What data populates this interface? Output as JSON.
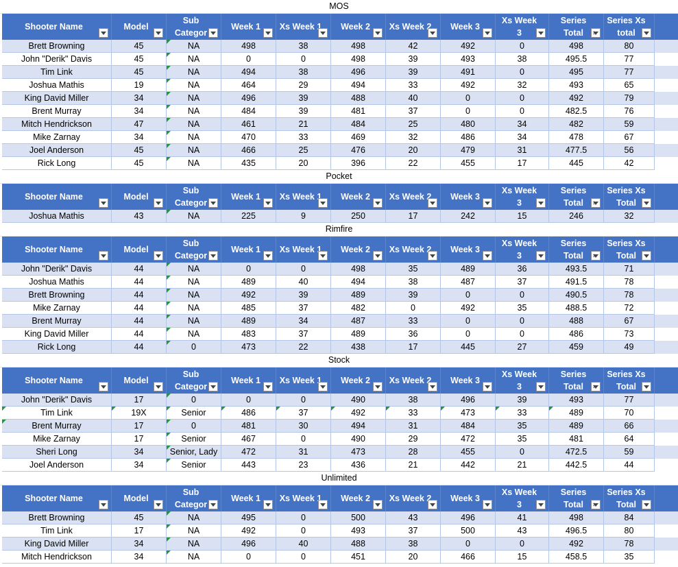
{
  "columns": [
    "Shooter Name",
    "Model",
    "Sub Category",
    "Week 1",
    "Xs Week 1",
    "Week 2",
    "Xs Week 2",
    "Week 3",
    "Xs Week 3",
    "Series Total",
    "Series Xs total"
  ],
  "sections": [
    {
      "title": "MOS",
      "header": [
        "Shooter Name",
        "Model",
        "Sub\nCategor",
        "Week 1",
        "Xs Week 1",
        "Week 2",
        "Xs Week 2",
        "Week 3",
        "Xs Week 3",
        "Series Total",
        "Series Xs\ntotal"
      ],
      "rows": [
        [
          "Brett Browning",
          "45",
          "NA",
          "498",
          "38",
          "498",
          "42",
          "492",
          "0",
          "498",
          "80"
        ],
        [
          "John \"Derik\" Davis",
          "45",
          "NA",
          "0",
          "0",
          "498",
          "39",
          "493",
          "38",
          "495.5",
          "77"
        ],
        [
          "Tim Link",
          "45",
          "NA",
          "494",
          "38",
          "496",
          "39",
          "491",
          "0",
          "495",
          "77"
        ],
        [
          "Joshua Mathis",
          "19",
          "NA",
          "464",
          "29",
          "494",
          "33",
          "492",
          "32",
          "493",
          "65"
        ],
        [
          "King David Miller",
          "34",
          "NA",
          "496",
          "39",
          "488",
          "40",
          "0",
          "0",
          "492",
          "79"
        ],
        [
          "Brent Murray",
          "34",
          "NA",
          "484",
          "39",
          "481",
          "37",
          "0",
          "0",
          "482.5",
          "76"
        ],
        [
          "Mitch Hendrickson",
          "47",
          "NA",
          "461",
          "21",
          "484",
          "25",
          "480",
          "34",
          "482",
          "59"
        ],
        [
          "Mike Zarnay",
          "34",
          "NA",
          "470",
          "33",
          "469",
          "32",
          "486",
          "34",
          "478",
          "67"
        ],
        [
          "Joel Anderson",
          "45",
          "NA",
          "466",
          "25",
          "476",
          "20",
          "479",
          "31",
          "477.5",
          "56"
        ],
        [
          "Rick Long",
          "45",
          "NA",
          "435",
          "20",
          "396",
          "22",
          "455",
          "17",
          "445",
          "42"
        ]
      ]
    },
    {
      "title": "Pocket",
      "header": [
        "Shooter Name",
        "Model",
        "Sub\nCategor",
        "Week 1",
        "Xs Week 1",
        "Week 2",
        "Xs Week 2",
        "Week 3",
        "Xs Week 3",
        "Series Total",
        "Series Xs\nTotal"
      ],
      "rows": [
        [
          "Joshua Mathis",
          "43",
          "NA",
          "225",
          "9",
          "250",
          "17",
          "242",
          "15",
          "246",
          "32"
        ]
      ]
    },
    {
      "title": "Rimfire",
      "header": [
        "Shooter Name",
        "Model",
        "Sub\nCategor",
        "Week 1",
        "Xs Week 1",
        "Week 2",
        "Xs Week 2",
        "Week 3",
        "Xs Week 3",
        "Series Total",
        "Series Xs\nTotal"
      ],
      "rows": [
        [
          "John \"Derik\" Davis",
          "44",
          "NA",
          "0",
          "0",
          "498",
          "35",
          "489",
          "36",
          "493.5",
          "71"
        ],
        [
          "Joshua Mathis",
          "44",
          "NA",
          "489",
          "40",
          "494",
          "38",
          "487",
          "37",
          "491.5",
          "78"
        ],
        [
          "Brett Browning",
          "44",
          "NA",
          "492",
          "39",
          "489",
          "39",
          "0",
          "0",
          "490.5",
          "78"
        ],
        [
          "Mike Zarnay",
          "44",
          "NA",
          "485",
          "37",
          "482",
          "0",
          "492",
          "35",
          "488.5",
          "72"
        ],
        [
          "Brent Murray",
          "44",
          "NA",
          "489",
          "34",
          "487",
          "33",
          "0",
          "0",
          "488",
          "67"
        ],
        [
          "King David Miller",
          "44",
          "NA",
          "483",
          "37",
          "489",
          "36",
          "0",
          "0",
          "486",
          "73"
        ],
        [
          "Rick Long",
          "44",
          "0",
          "473",
          "22",
          "438",
          "17",
          "445",
          "27",
          "459",
          "49"
        ]
      ]
    },
    {
      "title": "Stock",
      "header": [
        "Shooter Name",
        "Model",
        "Sub\nCategor",
        "Week 1",
        "Xs Week 1",
        "Week 2",
        "Xs Week 2",
        "Week 3",
        "Xs Week 3",
        "Series Total",
        "Series Xs\nTotal"
      ],
      "rows": [
        [
          "John \"Derik\" Davis",
          "17",
          "0",
          "0",
          "0",
          "490",
          "38",
          "496",
          "39",
          "493",
          "77"
        ],
        [
          "Tim Link",
          "19X",
          "Senior",
          "486",
          "37",
          "492",
          "33",
          "473",
          "33",
          "489",
          "70"
        ],
        [
          "Brent Murray",
          "17",
          "0",
          "481",
          "30",
          "494",
          "31",
          "484",
          "35",
          "489",
          "66"
        ],
        [
          "Mike Zarnay",
          "17",
          "Senior",
          "467",
          "0",
          "490",
          "29",
          "472",
          "35",
          "481",
          "64"
        ],
        [
          "Sheri Long",
          "34",
          "Senior, Lady",
          "472",
          "31",
          "473",
          "28",
          "455",
          "0",
          "472.5",
          "59"
        ],
        [
          "Joel Anderson",
          "34",
          "Senior",
          "443",
          "23",
          "436",
          "21",
          "442",
          "21",
          "442.5",
          "44"
        ]
      ]
    },
    {
      "title": "Unlimited",
      "header": [
        "Shooter Name",
        "Model",
        "Sub\nCategor",
        "Week 1",
        "Xs Week 1",
        "Week 2",
        "Xs Week 2",
        "Week 3",
        "Xs Week 3",
        "Series Total",
        "Series Xs\nTotal"
      ],
      "rows": [
        [
          "Brett Browning",
          "45",
          "NA",
          "495",
          "0",
          "500",
          "43",
          "496",
          "41",
          "498",
          "84"
        ],
        [
          "Tim Link",
          "17",
          "NA",
          "492",
          "0",
          "493",
          "37",
          "500",
          "43",
          "496.5",
          "80"
        ],
        [
          "King David Miller",
          "34",
          "NA",
          "496",
          "40",
          "488",
          "38",
          "0",
          "0",
          "492",
          "78"
        ],
        [
          "Mitch Hendrickson",
          "34",
          "NA",
          "0",
          "0",
          "451",
          "20",
          "466",
          "15",
          "458.5",
          "35"
        ]
      ]
    }
  ],
  "icons": {
    "filter": "filter-dropdown-icon",
    "sort": "sort-descending-icon"
  },
  "colors": {
    "header_bg": "#4472c4",
    "band_row": "#d9e1f2",
    "plain_row": "#ffffff",
    "flag": "#1f9a3a"
  }
}
